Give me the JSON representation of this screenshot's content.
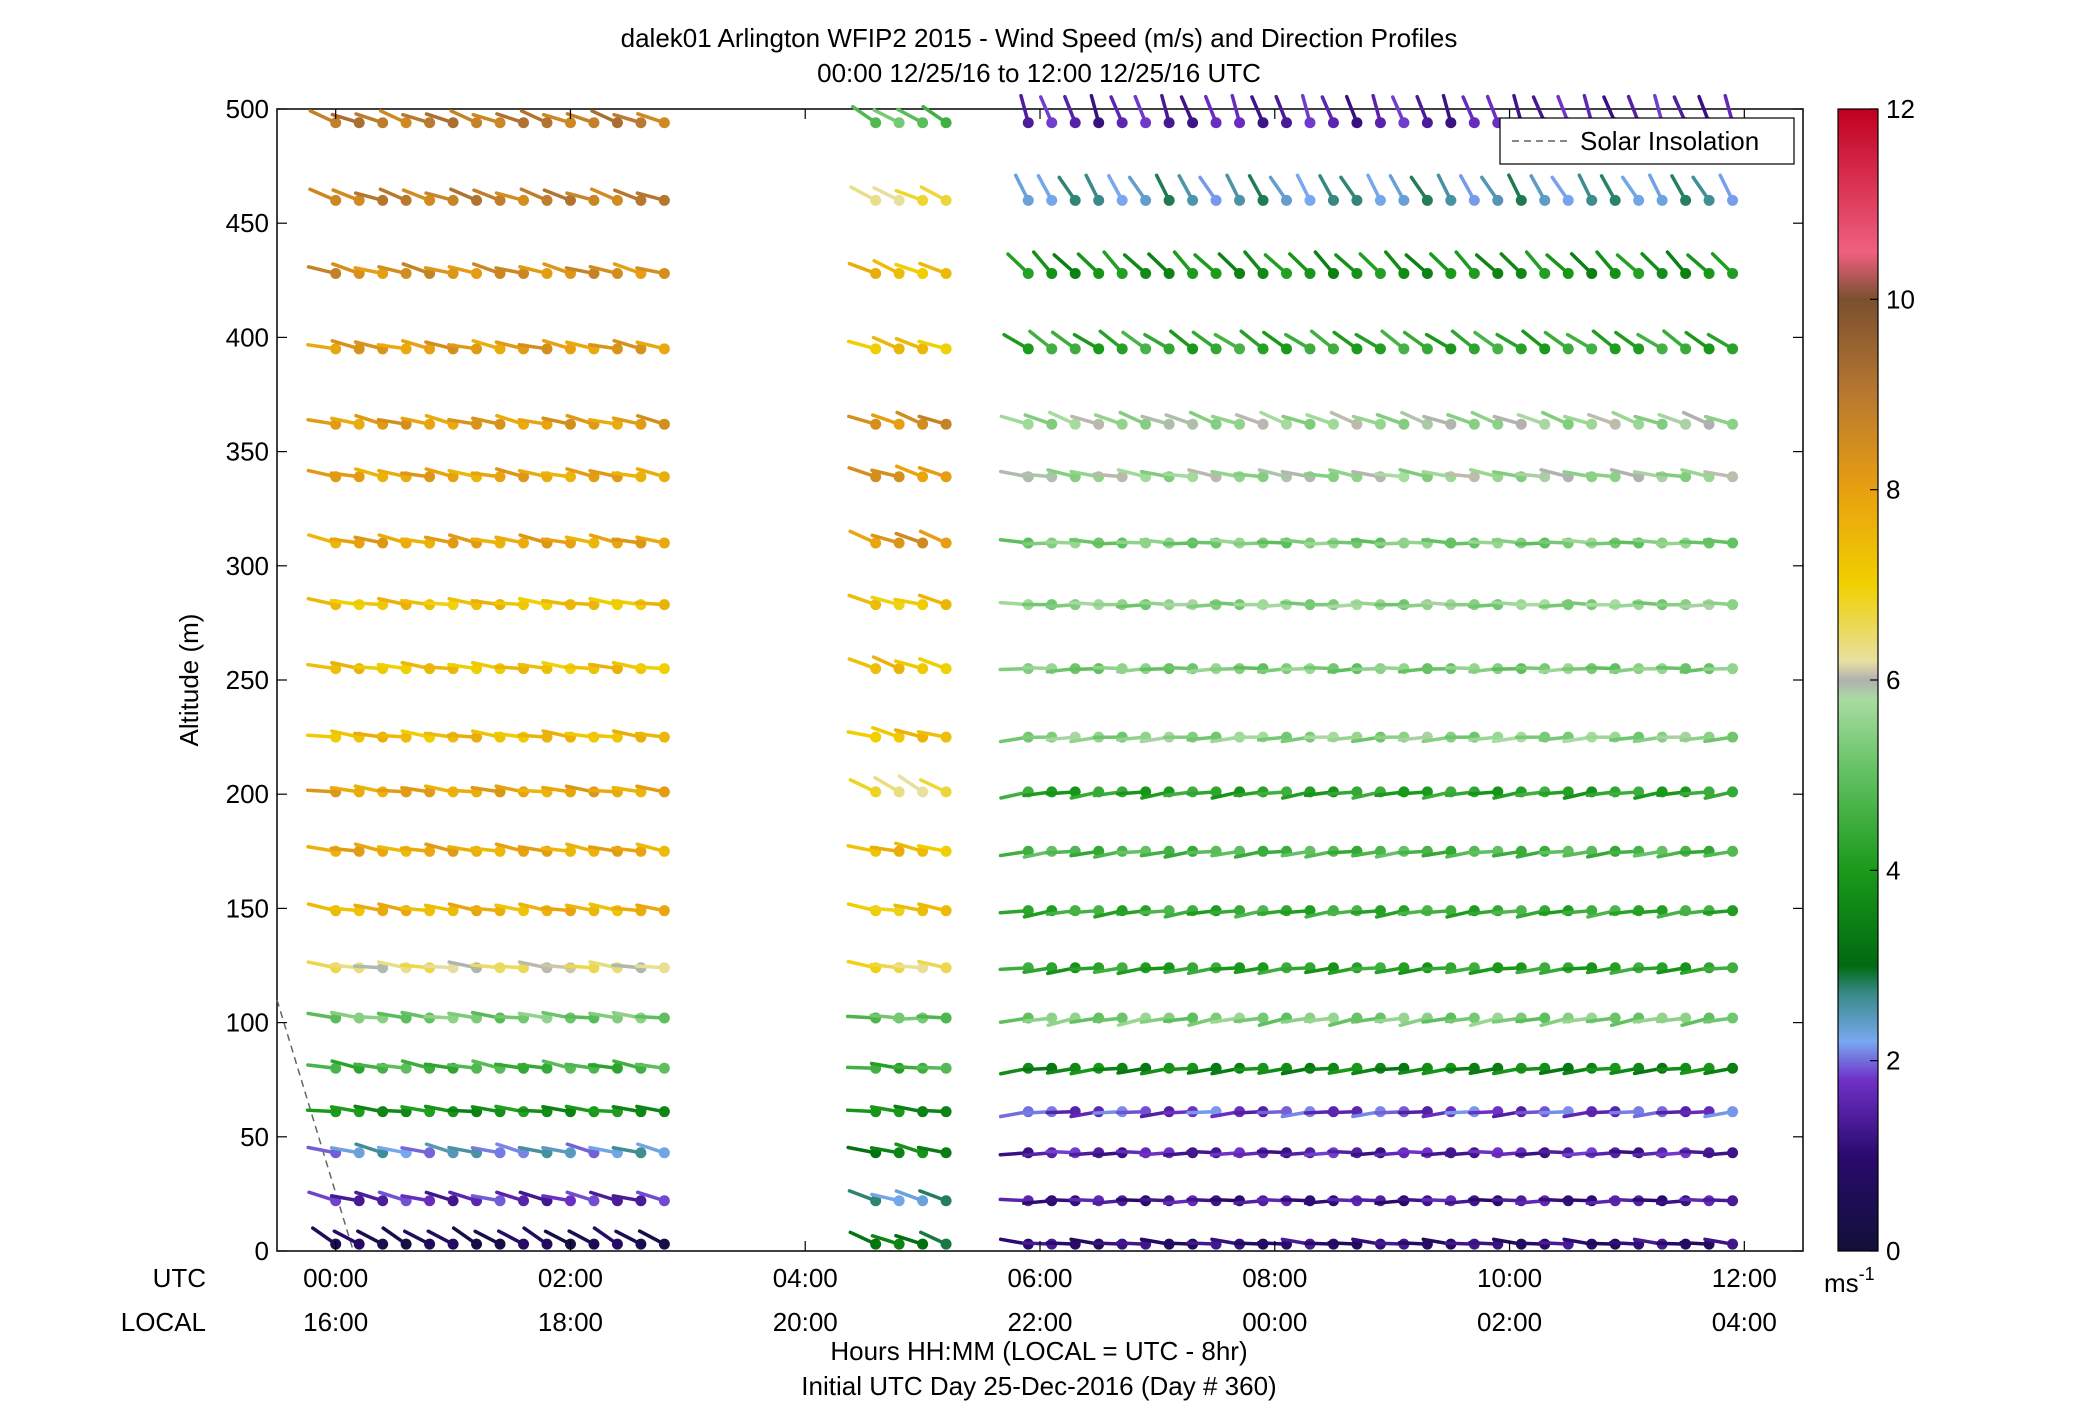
{
  "chart_data": {
    "type": "scatter",
    "title": "dalek01 Arlington WFIP2 2015 - Wind Speed (m/s) and Direction Profiles",
    "subtitle": "00:00 12/25/16 to 12:00 12/25/16  UTC",
    "xlabel": "Hours HH:MM  (LOCAL = UTC - 8hr)",
    "xlabel2": "Initial UTC Day 25-Dec-2016 (Day # 360)",
    "ylabel": "Altitude (m)",
    "xlim_hours": [
      -0.5,
      12.5
    ],
    "ylim": [
      0,
      500
    ],
    "y_ticks": [
      0,
      50,
      100,
      150,
      200,
      250,
      300,
      350,
      400,
      450,
      500
    ],
    "x_tick_hours": [
      0,
      2,
      4,
      6,
      8,
      10,
      12
    ],
    "x_tick_labels_utc": [
      "00:00",
      "02:00",
      "04:00",
      "06:00",
      "08:00",
      "10:00",
      "12:00"
    ],
    "x_tick_labels_local": [
      "16:00",
      "18:00",
      "20:00",
      "22:00",
      "00:00",
      "02:00",
      "04:00"
    ],
    "row_label_utc": "UTC",
    "row_label_local": "LOCAL",
    "legend": {
      "entry": "Solar Insolation",
      "position": "top-right",
      "style": "dashed-gray"
    },
    "colorbar": {
      "ticks": [
        0,
        2,
        4,
        6,
        8,
        10,
        12
      ],
      "range": [
        0,
        12
      ],
      "unit_label": "ms",
      "unit_exponent": "-1",
      "stops": [
        {
          "v": 0.0,
          "c": "#101038"
        },
        {
          "v": 1.0,
          "c": "#2a0a6e"
        },
        {
          "v": 1.8,
          "c": "#7030c8"
        },
        {
          "v": 2.2,
          "c": "#78a8f0"
        },
        {
          "v": 2.7,
          "c": "#3a8a8a"
        },
        {
          "v": 3.0,
          "c": "#006a10"
        },
        {
          "v": 4.0,
          "c": "#1a9a1a"
        },
        {
          "v": 5.0,
          "c": "#60c060"
        },
        {
          "v": 5.8,
          "c": "#a8dca0"
        },
        {
          "v": 6.0,
          "c": "#b0b0b0"
        },
        {
          "v": 6.2,
          "c": "#e8e0a0"
        },
        {
          "v": 7.0,
          "c": "#f0d000"
        },
        {
          "v": 8.0,
          "c": "#e8a010"
        },
        {
          "v": 9.0,
          "c": "#b87830"
        },
        {
          "v": 10.0,
          "c": "#7a5030"
        },
        {
          "v": 10.5,
          "c": "#f06080"
        },
        {
          "v": 12.0,
          "c": "#c00020"
        }
      ]
    },
    "altitudes_m": [
      3,
      22,
      43,
      61,
      80,
      102,
      124,
      149,
      175,
      201,
      225,
      255,
      283,
      310,
      339,
      362,
      395,
      428,
      460,
      494
    ],
    "segments": [
      {
        "t0": 0.0,
        "t1": 2.9,
        "speeds": [
          0.5,
          1.6,
          2.3,
          3.8,
          4.6,
          5.2,
          6.3,
          7.6,
          7.8,
          7.9,
          7.4,
          7.3,
          7.3,
          7.9,
          7.9,
          8.1,
          8.1,
          8.4,
          8.8,
          8.9
        ],
        "dirs": [
          300,
          285,
          283,
          278,
          280,
          278,
          277,
          280,
          280,
          278,
          278,
          278,
          278,
          282,
          282,
          283,
          283,
          285,
          290,
          290
        ]
      },
      {
        "t0": 4.6,
        "t1": 5.2,
        "speeds": [
          3.2,
          2.5,
          3.5,
          3.7,
          4.5,
          5.0,
          6.6,
          7.2,
          7.4,
          6.5,
          7.3,
          7.3,
          7.2,
          8.2,
          8.2,
          8.4,
          7.3,
          7.4,
          6.5,
          4.9
        ],
        "dirs": [
          290,
          288,
          283,
          278,
          275,
          272,
          278,
          280,
          282,
          300,
          285,
          290,
          285,
          290,
          288,
          290,
          290,
          292,
          295,
          300
        ]
      },
      {
        "t0": 5.9,
        "t1": 11.9,
        "speeds": [
          1.0,
          1.3,
          1.5,
          1.8,
          3.6,
          5.3,
          4.2,
          4.4,
          4.7,
          4.2,
          5.5,
          5.3,
          5.5,
          5.3,
          5.7,
          5.7,
          4.3,
          3.8,
          2.5,
          1.5
        ],
        "dirs": [
          275,
          270,
          268,
          265,
          262,
          260,
          262,
          262,
          262,
          262,
          265,
          268,
          270,
          272,
          280,
          290,
          305,
          315,
          330,
          340
        ]
      }
    ]
  }
}
